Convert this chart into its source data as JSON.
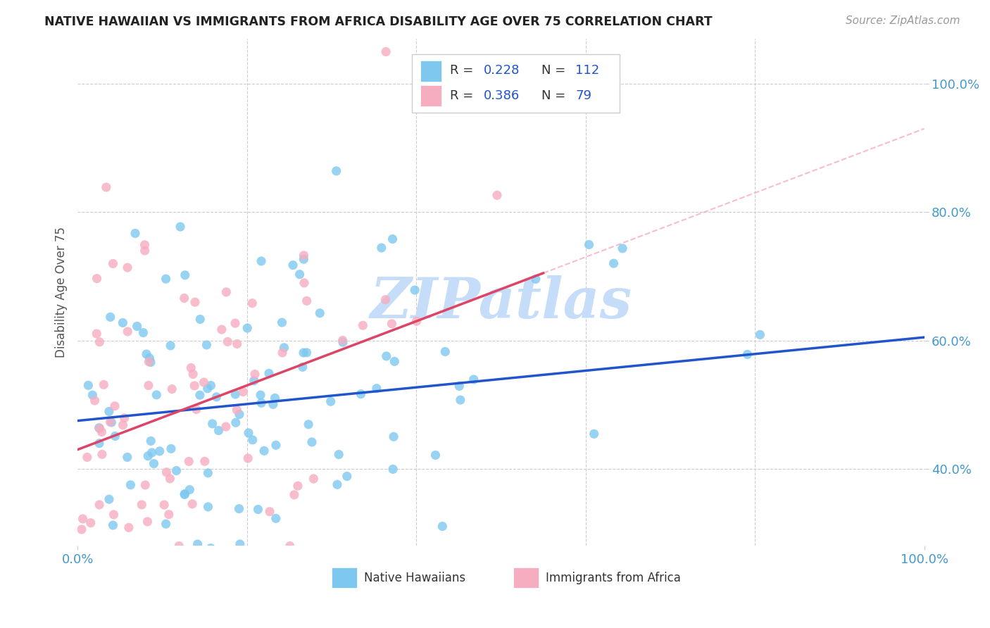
{
  "title": "NATIVE HAWAIIAN VS IMMIGRANTS FROM AFRICA DISABILITY AGE OVER 75 CORRELATION CHART",
  "source": "Source: ZipAtlas.com",
  "ylabel": "Disability Age Over 75",
  "R_blue": 0.228,
  "N_blue": 112,
  "R_pink": 0.386,
  "N_pink": 79,
  "blue_color": "#7ec8f0",
  "pink_color": "#f7adc0",
  "blue_line_color": "#2255cc",
  "pink_line_color": "#dd4466",
  "bg_color": "#ffffff",
  "grid_color": "#cccccc",
  "title_color": "#222222",
  "watermark": "ZIPatlas",
  "watermark_color": "#c5ddf8",
  "bottom_labels": [
    "Native Hawaiians",
    "Immigrants from Africa"
  ],
  "seed": 42,
  "legend_R_color": "#333333",
  "legend_N_color": "#2255cc",
  "tick_color": "#4499cc"
}
